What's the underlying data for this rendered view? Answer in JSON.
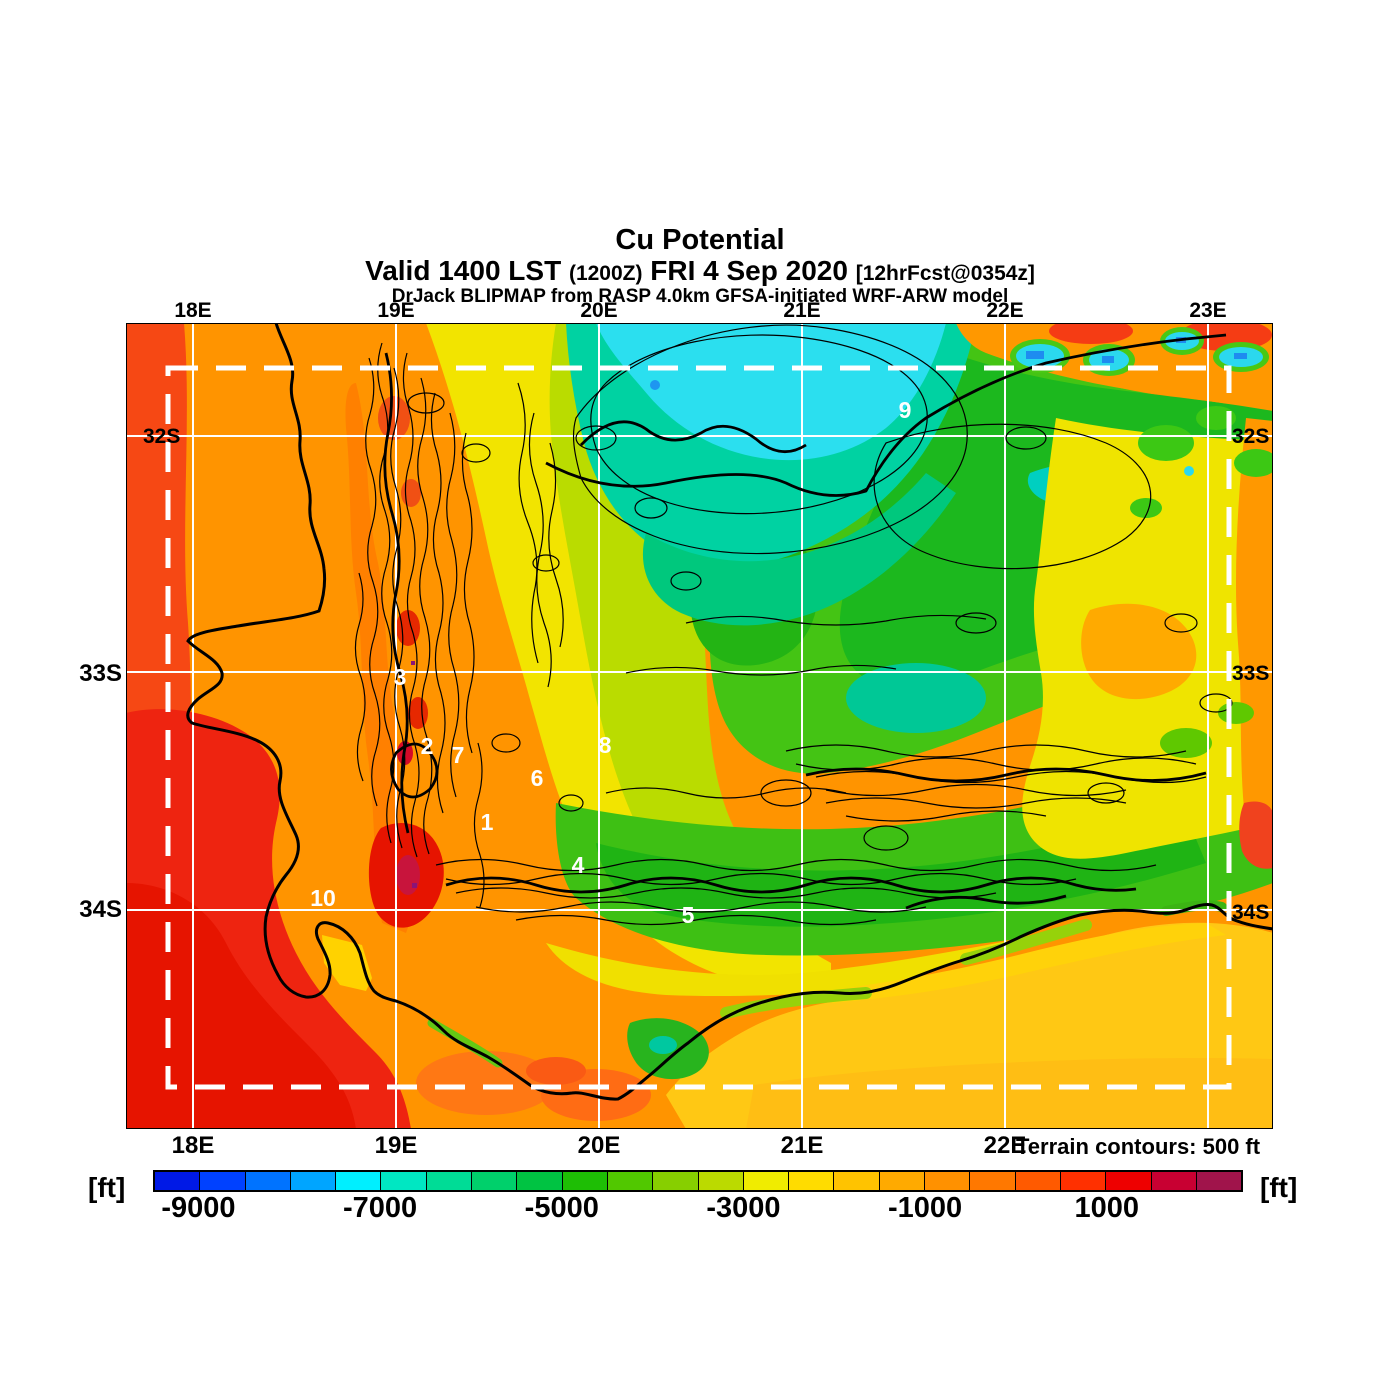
{
  "title": {
    "main": "Cu Potential",
    "valid_large_1": "Valid 1400 LST ",
    "valid_small_1": "(1200Z)",
    "valid_large_2": " FRI 4 Sep 2020 ",
    "valid_small_2": "[12hrFcst@0354z]",
    "model_line": "DrJack BLIPMAP from RASP 4.0km GFSA-initiated WRF-ARW model"
  },
  "map": {
    "lon_labels_top": [
      "18E",
      "19E",
      "20E",
      "21E",
      "22E",
      "23E"
    ],
    "lon_labels_bottom": [
      "18E",
      "19E",
      "20E",
      "21E",
      "22E"
    ],
    "lat_labels_left": [
      "32S",
      "33S",
      "34S"
    ],
    "lat_labels_right": [
      "32S",
      "33S",
      "34S"
    ],
    "site_numbers": [
      "1",
      "2",
      "3",
      "4",
      "5",
      "6",
      "7",
      "8",
      "9",
      "10"
    ],
    "terrain_note": "Terrain contours: 500 ft"
  },
  "colorbar": {
    "unit_left": "[ft]",
    "unit_right": "[ft]",
    "tick_labels": [
      "-9000",
      "-7000",
      "-5000",
      "-3000",
      "-1000",
      "1000"
    ],
    "colors": [
      "#0019E6",
      "#0041FF",
      "#0073FF",
      "#00A5FF",
      "#00EFFF",
      "#00E7C2",
      "#00DC96",
      "#00D06B",
      "#00C342",
      "#1EBE05",
      "#51C800",
      "#87CF00",
      "#BBDA00",
      "#F0EC00",
      "#FFDC00",
      "#FFC300",
      "#FFAA00",
      "#FF9100",
      "#FF7800",
      "#FF5A00",
      "#FF3000",
      "#EE0000",
      "#C80032",
      "#A0144B"
    ]
  },
  "colors": {
    "grid_line": "#FFFFFF",
    "domain_dash": "#FFFFFF",
    "contour": "#000000",
    "site_number": "#FFFFFF"
  }
}
